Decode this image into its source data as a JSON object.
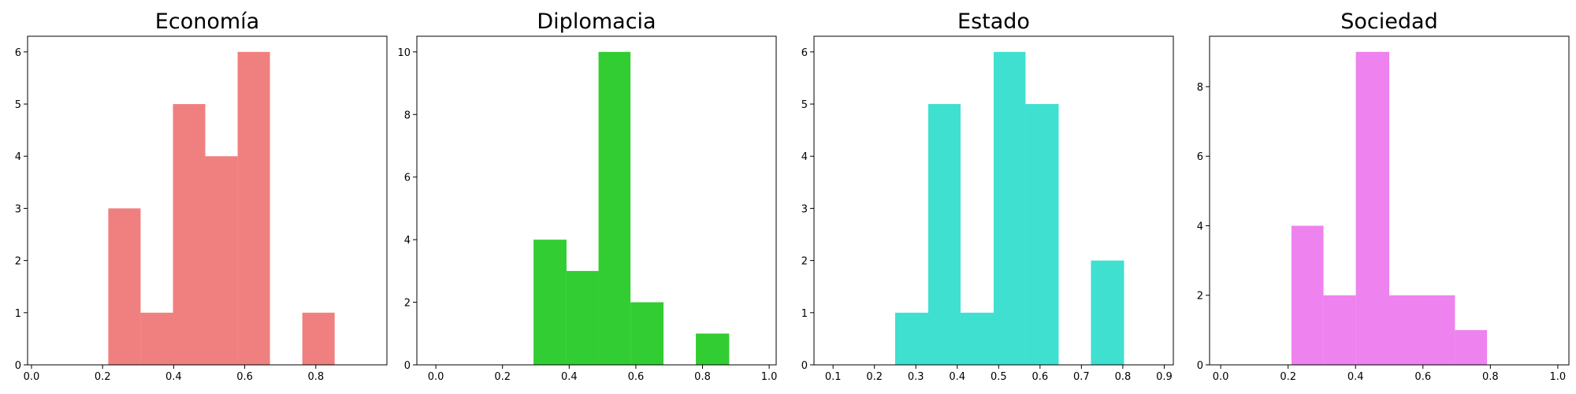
{
  "chart_data": [
    {
      "type": "histogram",
      "title": "Economía",
      "color": "#f08080",
      "bins": [
        0.216,
        0.307,
        0.398,
        0.489,
        0.58,
        0.671,
        0.762,
        0.853
      ],
      "values": [
        3,
        1,
        5,
        4,
        6,
        0,
        1
      ],
      "xlim": [
        -0.011,
        1.0
      ],
      "xticks": [
        {
          "value": 0,
          "label": "0.0"
        },
        0.2,
        0.4,
        0.6,
        0.8
      ],
      "ylim": [
        0,
        6.3
      ],
      "yticks": [
        0,
        1,
        2,
        3,
        4,
        5,
        6
      ]
    },
    {
      "type": "histogram",
      "title": "Diplomacia",
      "color": "#32cd32",
      "bins": [
        0.293,
        0.392,
        0.488,
        0.584,
        0.683,
        0.78,
        0.88
      ],
      "values": [
        4,
        3,
        10,
        2,
        0,
        1
      ],
      "xlim": [
        -0.057,
        1.021
      ],
      "xticks": [
        {
          "value": 0,
          "label": "0.0"
        },
        0.2,
        0.4,
        0.6,
        0.8,
        {
          "value": 1,
          "label": "1.0"
        }
      ],
      "ylim": [
        0,
        10.5
      ],
      "yticks": [
        0,
        2,
        4,
        6,
        8,
        10
      ]
    },
    {
      "type": "histogram",
      "title": "Estado",
      "color": "#40e0d0",
      "bins": [
        0.25,
        0.33,
        0.408,
        0.488,
        0.565,
        0.645,
        0.723,
        0.803
      ],
      "values": [
        1,
        5,
        1,
        6,
        5,
        0,
        2
      ],
      "xlim": [
        0.054,
        0.922
      ],
      "xticks": [
        0.1,
        0.2,
        0.3,
        0.4,
        0.5,
        0.6,
        0.7,
        0.8,
        0.9
      ],
      "ylim": [
        0,
        6.3
      ],
      "yticks": [
        0,
        1,
        2,
        3,
        4,
        5,
        6
      ]
    },
    {
      "type": "histogram",
      "title": "Sociedad",
      "color": "#ee82ee",
      "bins": [
        0.21,
        0.305,
        0.401,
        0.5,
        0.596,
        0.695,
        0.79
      ],
      "values": [
        4,
        2,
        9,
        2,
        2,
        1
      ],
      "xlim": [
        -0.033,
        1.033
      ],
      "xticks": [
        {
          "value": 0,
          "label": "0.0"
        },
        0.2,
        0.4,
        0.6,
        0.8,
        {
          "value": 1,
          "label": "1.0"
        }
      ],
      "ylim": [
        0,
        9.45
      ],
      "yticks": [
        0,
        2,
        4,
        6,
        8
      ]
    }
  ]
}
